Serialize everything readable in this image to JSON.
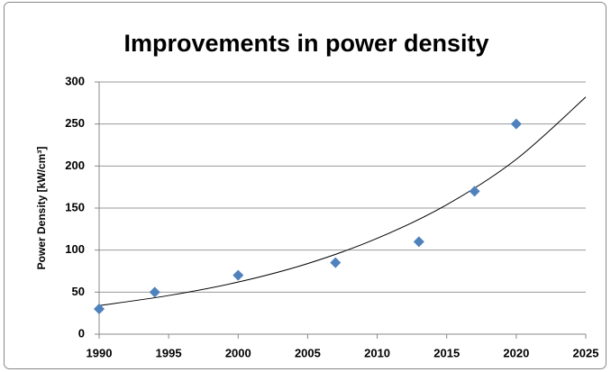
{
  "chart_data": {
    "type": "scatter",
    "title": "Improvements in power density",
    "y_label": "Power Density [kW/cm³]",
    "x": [
      1990,
      1994,
      2000,
      2007,
      2013,
      2017,
      2020
    ],
    "values": [
      30,
      50,
      70,
      85,
      110,
      170,
      250
    ],
    "color": "#4f81bd",
    "trendline": {
      "x": [
        1990,
        1995,
        2000,
        2005,
        2010,
        2015,
        2020,
        2025
      ],
      "values": [
        34,
        46,
        62,
        84,
        114,
        154,
        208,
        282
      ],
      "color": "#000000"
    },
    "xlim": [
      1990,
      2025
    ],
    "xticks": [
      1990,
      1995,
      2000,
      2005,
      2010,
      2015,
      2020,
      2025
    ],
    "ylim": [
      0,
      300
    ],
    "yticks": [
      0,
      50,
      100,
      150,
      200,
      250,
      300
    ],
    "grid": true
  }
}
